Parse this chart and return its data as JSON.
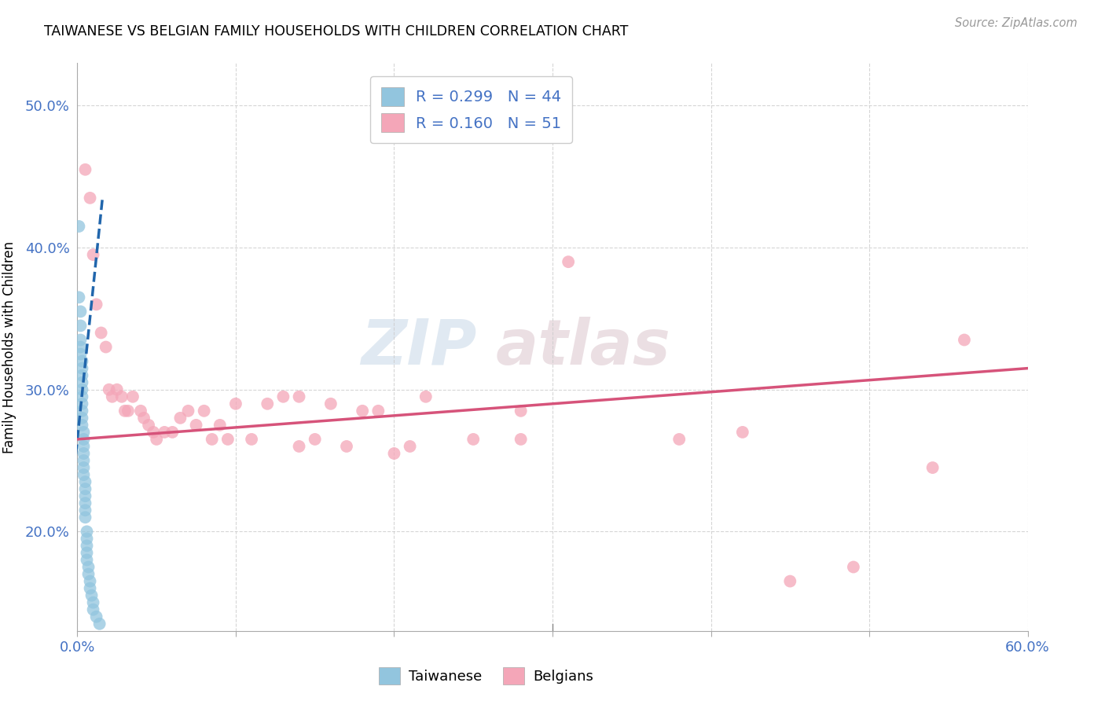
{
  "title": "TAIWANESE VS BELGIAN FAMILY HOUSEHOLDS WITH CHILDREN CORRELATION CHART",
  "source": "Source: ZipAtlas.com",
  "ylabel": "Family Households with Children",
  "watermark_zip": "ZIP",
  "watermark_atlas": "atlas",
  "taiwanese_R": 0.299,
  "taiwanese_N": 44,
  "belgian_R": 0.16,
  "belgian_N": 51,
  "xlim": [
    0.0,
    0.6
  ],
  "ylim": [
    0.13,
    0.53
  ],
  "yticks": [
    0.2,
    0.3,
    0.4,
    0.5
  ],
  "xticks": [
    0.0,
    0.1,
    0.2,
    0.3,
    0.4,
    0.5,
    0.6
  ],
  "ytick_labels": [
    "20.0%",
    "30.0%",
    "40.0%",
    "50.0%"
  ],
  "xtick_labels": [
    "0.0%",
    "",
    "",
    "",
    "",
    "",
    "60.0%"
  ],
  "taiwanese_color": "#92c5de",
  "taiwanese_line_color": "#2166ac",
  "belgian_color": "#f4a6b8",
  "belgian_line_color": "#d6537a",
  "tw_x": [
    0.001,
    0.001,
    0.002,
    0.002,
    0.002,
    0.002,
    0.002,
    0.003,
    0.003,
    0.003,
    0.003,
    0.003,
    0.003,
    0.003,
    0.003,
    0.003,
    0.003,
    0.004,
    0.004,
    0.004,
    0.004,
    0.004,
    0.004,
    0.004,
    0.005,
    0.005,
    0.005,
    0.005,
    0.005,
    0.005,
    0.006,
    0.006,
    0.006,
    0.006,
    0.006,
    0.007,
    0.007,
    0.008,
    0.008,
    0.009,
    0.01,
    0.01,
    0.012,
    0.014
  ],
  "tw_y": [
    0.415,
    0.365,
    0.355,
    0.345,
    0.335,
    0.33,
    0.325,
    0.32,
    0.315,
    0.31,
    0.305,
    0.3,
    0.295,
    0.29,
    0.285,
    0.28,
    0.275,
    0.27,
    0.265,
    0.26,
    0.255,
    0.25,
    0.245,
    0.24,
    0.235,
    0.23,
    0.225,
    0.22,
    0.215,
    0.21,
    0.2,
    0.195,
    0.19,
    0.185,
    0.18,
    0.175,
    0.17,
    0.165,
    0.16,
    0.155,
    0.15,
    0.145,
    0.14,
    0.135
  ],
  "be_x": [
    0.005,
    0.008,
    0.01,
    0.012,
    0.015,
    0.018,
    0.02,
    0.022,
    0.025,
    0.028,
    0.03,
    0.032,
    0.035,
    0.04,
    0.042,
    0.045,
    0.048,
    0.05,
    0.055,
    0.06,
    0.065,
    0.07,
    0.075,
    0.08,
    0.085,
    0.09,
    0.095,
    0.1,
    0.11,
    0.12,
    0.13,
    0.14,
    0.15,
    0.16,
    0.17,
    0.18,
    0.19,
    0.2,
    0.21,
    0.22,
    0.25,
    0.28,
    0.31,
    0.38,
    0.42,
    0.45,
    0.49,
    0.54,
    0.56,
    0.28,
    0.14
  ],
  "be_y": [
    0.455,
    0.435,
    0.395,
    0.36,
    0.34,
    0.33,
    0.3,
    0.295,
    0.3,
    0.295,
    0.285,
    0.285,
    0.295,
    0.285,
    0.28,
    0.275,
    0.27,
    0.265,
    0.27,
    0.27,
    0.28,
    0.285,
    0.275,
    0.285,
    0.265,
    0.275,
    0.265,
    0.29,
    0.265,
    0.29,
    0.295,
    0.295,
    0.265,
    0.29,
    0.26,
    0.285,
    0.285,
    0.255,
    0.26,
    0.295,
    0.265,
    0.285,
    0.39,
    0.265,
    0.27,
    0.165,
    0.175,
    0.245,
    0.335,
    0.265,
    0.26
  ],
  "tw_regline_x": [
    0.0,
    0.014
  ],
  "tw_regline_y": [
    0.265,
    0.395
  ],
  "be_regline_x": [
    0.0,
    0.6
  ],
  "be_regline_y": [
    0.265,
    0.315
  ]
}
